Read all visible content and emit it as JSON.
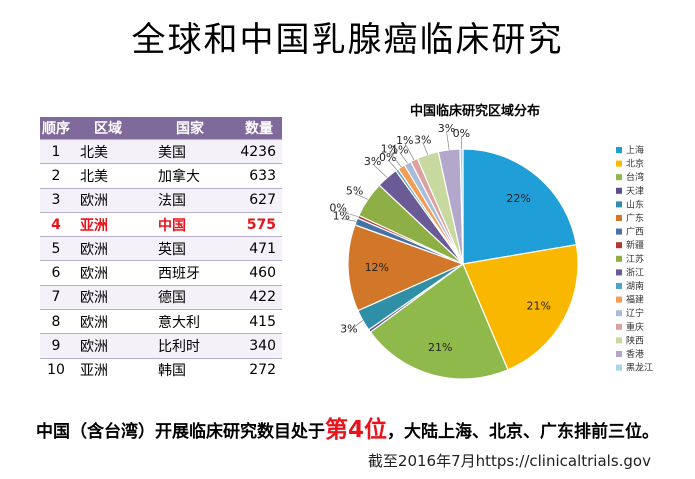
{
  "title": "全球和中国乳腺癌临床研究",
  "table": {
    "headers": [
      "顺序",
      "区域",
      "国家",
      "数量"
    ],
    "rows": [
      {
        "rank": "1",
        "region": "北美",
        "country": "美国",
        "count": "4236",
        "highlight": false
      },
      {
        "rank": "2",
        "region": "北美",
        "country": "加拿大",
        "count": "633",
        "highlight": false
      },
      {
        "rank": "3",
        "region": "欧洲",
        "country": "法国",
        "count": "627",
        "highlight": false
      },
      {
        "rank": "4",
        "region": "亚洲",
        "country": "中国",
        "count": "575",
        "highlight": true
      },
      {
        "rank": "5",
        "region": "欧洲",
        "country": "英国",
        "count": "471",
        "highlight": false
      },
      {
        "rank": "6",
        "region": "欧洲",
        "country": "西班牙",
        "count": "460",
        "highlight": false
      },
      {
        "rank": "7",
        "region": "欧洲",
        "country": "德国",
        "count": "422",
        "highlight": false
      },
      {
        "rank": "8",
        "region": "欧洲",
        "country": "意大利",
        "count": "415",
        "highlight": false
      },
      {
        "rank": "9",
        "region": "欧洲",
        "country": "比利时",
        "count": "340",
        "highlight": false
      },
      {
        "rank": "10",
        "region": "亚洲",
        "country": "韩国",
        "count": "272",
        "highlight": false
      }
    ]
  },
  "chart_data": {
    "type": "pie",
    "title": "中国临床研究区域分布",
    "legend_position": "right",
    "categories": [
      "上海",
      "北京",
      "台湾",
      "天津",
      "山东",
      "广东",
      "广西",
      "新疆",
      "江苏",
      "浙江",
      "湖南",
      "福建",
      "辽宁",
      "重庆",
      "陕西",
      "香港",
      "黑龙江"
    ],
    "values": [
      22,
      21,
      21,
      0.4,
      3,
      12,
      1,
      0.4,
      5,
      3,
      0.4,
      1,
      1,
      1,
      3,
      3,
      0.4
    ],
    "labels": [
      "22%",
      "21%",
      "21%",
      "",
      "3%",
      "12%",
      "1%",
      "0%",
      "5%",
      "3%",
      "0%",
      "1%",
      "1%",
      "1%",
      "3%",
      "3%",
      "0%"
    ],
    "colors": [
      "#1f9ed8",
      "#f9b700",
      "#8fb94b",
      "#5a4d8c",
      "#2e8fa6",
      "#d2772a",
      "#4573a7",
      "#b13634",
      "#8eaf46",
      "#6a5a96",
      "#4da6c8",
      "#f49c54",
      "#a8bcda",
      "#dba29f",
      "#c7d99e",
      "#b3a8cc",
      "#a6d6e8"
    ]
  },
  "caption": {
    "pre": "中国（含台湾）开展临床研究数目处于",
    "emph": "第4位",
    "post": "，大陆上海、北京、广东排前三位。"
  },
  "source": "截至2016年7月https://clinicaltrials.gov"
}
